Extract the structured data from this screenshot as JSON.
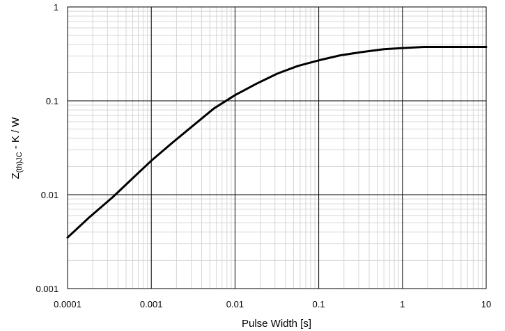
{
  "chart_data": {
    "type": "line",
    "x_scale": "log",
    "y_scale": "log",
    "xlim": [
      0.0001,
      10
    ],
    "ylim": [
      0.001,
      1
    ],
    "grid": true,
    "legend": "none",
    "xlabel": "Pulse Width [s]",
    "ylabel": {
      "main": "Z",
      "subscript": "(th)JC",
      "suffix": " - K / W"
    },
    "x_tick_labels": [
      "0.0001",
      "0.001",
      "0.01",
      "0.1",
      "1",
      "10"
    ],
    "y_tick_labels": [
      "0.001",
      "0.01",
      "0.1",
      "1"
    ],
    "series": [
      {
        "color": "#000000",
        "x": [
          0.0001,
          0.00018,
          0.00035,
          0.0006,
          0.001,
          0.0018,
          0.0032,
          0.0056,
          0.01,
          0.018,
          0.032,
          0.056,
          0.1,
          0.18,
          0.32,
          0.6,
          1.0,
          1.8,
          3.2,
          5.6,
          10
        ],
        "y": [
          0.0035,
          0.0057,
          0.0095,
          0.015,
          0.023,
          0.036,
          0.055,
          0.083,
          0.115,
          0.152,
          0.195,
          0.235,
          0.27,
          0.305,
          0.33,
          0.355,
          0.365,
          0.375,
          0.375,
          0.375,
          0.375
        ]
      }
    ]
  }
}
